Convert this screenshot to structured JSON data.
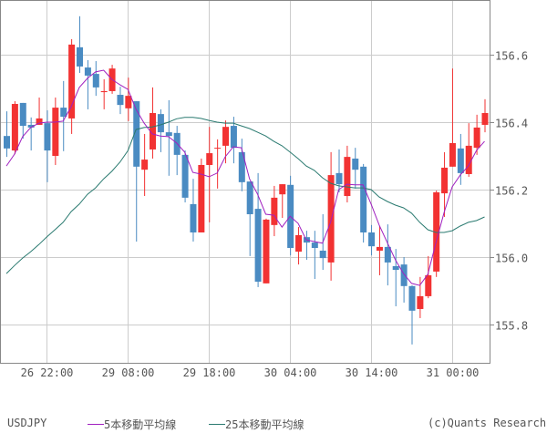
{
  "chart_data": {
    "type": "candlestick",
    "symbol": "USDJPY",
    "title": "",
    "xlabel": "",
    "ylabel": "",
    "ylim": [
      155.683,
      156.762
    ],
    "grid": true,
    "legend_position": "bottom",
    "y_ticks": [
      156.6,
      156.4,
      156.2,
      156.0,
      155.8
    ],
    "y_tick_labels": [
      "156.6",
      "156.4",
      "156.2",
      "156.0",
      "155.8"
    ],
    "x_tick_labels": [
      {
        "label": "26 22:00",
        "index": 5
      },
      {
        "label": "29 08:00",
        "index": 15
      },
      {
        "label": "29 18:00",
        "index": 25
      },
      {
        "label": "30 04:00",
        "index": 35
      },
      {
        "label": "30 14:00",
        "index": 45
      },
      {
        "label": "31 00:00",
        "index": 55
      }
    ],
    "colors": {
      "up": "#f23232",
      "down": "#4a8bc2",
      "ma5": "#a020c0",
      "ma25": "#2a7a70",
      "grid": "#cccccc",
      "axis": "#888888"
    },
    "candles": [
      {
        "o": 156.359,
        "h": 156.432,
        "l": 156.297,
        "c": 156.322
      },
      {
        "o": 156.316,
        "h": 156.462,
        "l": 156.305,
        "c": 156.454
      },
      {
        "o": 156.457,
        "h": 156.457,
        "l": 156.351,
        "c": 156.389
      },
      {
        "o": 156.392,
        "h": 156.414,
        "l": 156.316,
        "c": 156.384
      },
      {
        "o": 156.392,
        "h": 156.473,
        "l": 156.392,
        "c": 156.411
      },
      {
        "o": 156.397,
        "h": 156.435,
        "l": 156.222,
        "c": 156.316
      },
      {
        "o": 156.3,
        "h": 156.473,
        "l": 156.273,
        "c": 156.443
      },
      {
        "o": 156.443,
        "h": 156.522,
        "l": 156.314,
        "c": 156.416
      },
      {
        "o": 156.411,
        "h": 156.646,
        "l": 156.365,
        "c": 156.63
      },
      {
        "o": 156.622,
        "h": 156.714,
        "l": 156.546,
        "c": 156.565
      },
      {
        "o": 156.562,
        "h": 156.584,
        "l": 156.438,
        "c": 156.538
      },
      {
        "o": 156.543,
        "h": 156.581,
        "l": 156.478,
        "c": 156.503
      },
      {
        "o": 156.489,
        "h": 156.527,
        "l": 156.438,
        "c": 156.492
      },
      {
        "o": 156.492,
        "h": 156.57,
        "l": 156.484,
        "c": 156.559
      },
      {
        "o": 156.481,
        "h": 156.505,
        "l": 156.424,
        "c": 156.451
      },
      {
        "o": 156.441,
        "h": 156.532,
        "l": 156.403,
        "c": 156.478
      },
      {
        "o": 156.462,
        "h": 156.462,
        "l": 156.046,
        "c": 156.268
      },
      {
        "o": 156.259,
        "h": 156.365,
        "l": 156.181,
        "c": 156.289
      },
      {
        "o": 156.319,
        "h": 156.503,
        "l": 156.292,
        "c": 156.427
      },
      {
        "o": 156.424,
        "h": 156.438,
        "l": 156.311,
        "c": 156.37
      },
      {
        "o": 156.37,
        "h": 156.465,
        "l": 156.241,
        "c": 156.359
      },
      {
        "o": 156.368,
        "h": 156.389,
        "l": 156.243,
        "c": 156.303
      },
      {
        "o": 156.303,
        "h": 156.316,
        "l": 156.162,
        "c": 156.176
      },
      {
        "o": 156.157,
        "h": 156.232,
        "l": 156.046,
        "c": 156.073
      },
      {
        "o": 156.073,
        "h": 156.292,
        "l": 156.073,
        "c": 156.273
      },
      {
        "o": 156.273,
        "h": 156.386,
        "l": 156.103,
        "c": 156.308
      },
      {
        "o": 156.322,
        "h": 156.349,
        "l": 156.203,
        "c": 156.324
      },
      {
        "o": 156.33,
        "h": 156.405,
        "l": 156.278,
        "c": 156.386
      },
      {
        "o": 156.389,
        "h": 156.416,
        "l": 156.278,
        "c": 156.324
      },
      {
        "o": 156.311,
        "h": 156.351,
        "l": 156.195,
        "c": 156.222
      },
      {
        "o": 156.224,
        "h": 156.224,
        "l": 156.003,
        "c": 156.127
      },
      {
        "o": 156.143,
        "h": 156.249,
        "l": 155.911,
        "c": 155.927
      },
      {
        "o": 155.922,
        "h": 156.114,
        "l": 155.922,
        "c": 156.111
      },
      {
        "o": 156.095,
        "h": 156.211,
        "l": 156.062,
        "c": 156.176
      },
      {
        "o": 156.186,
        "h": 156.216,
        "l": 156.116,
        "c": 156.216
      },
      {
        "o": 156.214,
        "h": 156.241,
        "l": 156.005,
        "c": 156.027
      },
      {
        "o": 156.016,
        "h": 156.089,
        "l": 155.978,
        "c": 156.065
      },
      {
        "o": 156.059,
        "h": 156.078,
        "l": 155.992,
        "c": 156.043
      },
      {
        "o": 156.043,
        "h": 156.078,
        "l": 155.935,
        "c": 156.027
      },
      {
        "o": 156.019,
        "h": 156.127,
        "l": 155.962,
        "c": 155.997
      },
      {
        "o": 155.984,
        "h": 156.311,
        "l": 155.93,
        "c": 156.243
      },
      {
        "o": 156.249,
        "h": 156.319,
        "l": 156.192,
        "c": 156.216
      },
      {
        "o": 156.181,
        "h": 156.33,
        "l": 156.162,
        "c": 156.297
      },
      {
        "o": 156.292,
        "h": 156.324,
        "l": 156.203,
        "c": 156.259
      },
      {
        "o": 156.268,
        "h": 156.276,
        "l": 156.043,
        "c": 156.073
      },
      {
        "o": 156.073,
        "h": 156.095,
        "l": 156.005,
        "c": 156.032
      },
      {
        "o": 156.019,
        "h": 156.092,
        "l": 155.946,
        "c": 156.03
      },
      {
        "o": 156.03,
        "h": 156.097,
        "l": 155.916,
        "c": 155.984
      },
      {
        "o": 155.973,
        "h": 156.024,
        "l": 155.854,
        "c": 155.962
      },
      {
        "o": 155.978,
        "h": 156.0,
        "l": 155.865,
        "c": 155.914
      },
      {
        "o": 155.914,
        "h": 155.916,
        "l": 155.741,
        "c": 155.841
      },
      {
        "o": 155.846,
        "h": 155.941,
        "l": 155.819,
        "c": 155.884
      },
      {
        "o": 155.884,
        "h": 156.003,
        "l": 155.878,
        "c": 155.946
      },
      {
        "o": 155.957,
        "h": 156.197,
        "l": 155.941,
        "c": 156.192
      },
      {
        "o": 156.189,
        "h": 156.311,
        "l": 156.119,
        "c": 156.265
      },
      {
        "o": 156.268,
        "h": 156.559,
        "l": 156.268,
        "c": 156.338
      },
      {
        "o": 156.322,
        "h": 156.365,
        "l": 156.214,
        "c": 156.249
      },
      {
        "o": 156.246,
        "h": 156.397,
        "l": 156.238,
        "c": 156.33
      },
      {
        "o": 156.324,
        "h": 156.422,
        "l": 156.303,
        "c": 156.384
      },
      {
        "o": 156.392,
        "h": 156.468,
        "l": 156.37,
        "c": 156.427
      }
    ],
    "series": [
      {
        "name": "5本移動平均線",
        "type": "line",
        "values": [
          156.27,
          156.305,
          156.357,
          156.384,
          156.397,
          156.4,
          156.4,
          156.403,
          156.446,
          156.503,
          156.53,
          156.549,
          156.554,
          156.527,
          156.511,
          156.497,
          156.438,
          156.397,
          156.365,
          156.359,
          156.357,
          156.338,
          156.311,
          156.251,
          156.246,
          156.238,
          156.249,
          156.297,
          156.327,
          156.324,
          156.232,
          156.186,
          156.127,
          156.124,
          156.089,
          156.121,
          156.1,
          156.051,
          156.046,
          156.041,
          156.103,
          156.2,
          156.216,
          156.214,
          156.214,
          156.157,
          156.095,
          156.043,
          155.992,
          155.951,
          155.922,
          155.916,
          155.949,
          156.043,
          156.132,
          156.208,
          156.243,
          156.27,
          156.316,
          156.343
        ]
      },
      {
        "name": "25本移動平均線",
        "type": "line",
        "values": [
          155.951,
          155.975,
          155.997,
          156.016,
          156.037,
          156.06,
          156.081,
          156.103,
          156.135,
          156.157,
          156.186,
          156.205,
          156.232,
          156.254,
          156.281,
          156.316,
          156.378,
          156.384,
          156.386,
          156.392,
          156.4,
          156.41,
          156.414,
          156.414,
          156.411,
          156.405,
          156.4,
          156.397,
          156.397,
          156.389,
          156.381,
          156.37,
          156.359,
          156.343,
          156.33,
          156.311,
          156.292,
          156.27,
          156.257,
          156.235,
          156.219,
          156.211,
          156.208,
          156.205,
          156.205,
          156.2,
          156.178,
          156.165,
          156.154,
          156.146,
          156.13,
          156.103,
          156.081,
          156.073,
          156.073,
          156.078,
          156.092,
          156.103,
          156.108,
          156.119
        ]
      }
    ]
  },
  "legend": {
    "symbol": "USDJPY",
    "ma5_label": "5本移動平均線",
    "ma25_label": "25本移動平均線",
    "copyright": "(c)Quants Research"
  }
}
